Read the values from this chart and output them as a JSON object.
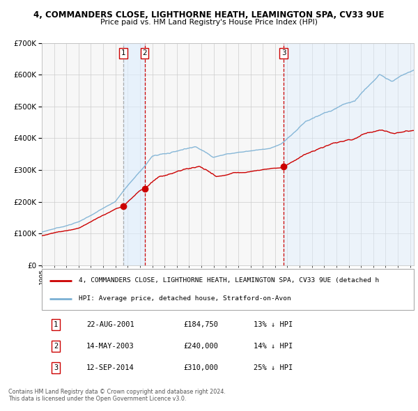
{
  "title": "4, COMMANDERS CLOSE, LIGHTHORNE HEATH, LEAMINGTON SPA, CV33 9UE",
  "subtitle": "Price paid vs. HM Land Registry's House Price Index (HPI)",
  "property_label": "4, COMMANDERS CLOSE, LIGHTHORNE HEATH, LEAMINGTON SPA, CV33 9UE (detached h",
  "hpi_label": "HPI: Average price, detached house, Stratford-on-Avon",
  "footer1": "Contains HM Land Registry data © Crown copyright and database right 2024.",
  "footer2": "This data is licensed under the Open Government Licence v3.0.",
  "transactions": [
    {
      "num": 1,
      "date": "22-AUG-2001",
      "price": 184750,
      "pct": "13%",
      "dir": "↓",
      "year": 2001.64
    },
    {
      "num": 2,
      "date": "14-MAY-2003",
      "price": 240000,
      "pct": "14%",
      "dir": "↓",
      "year": 2003.37
    },
    {
      "num": 3,
      "date": "12-SEP-2014",
      "price": 310000,
      "pct": "25%",
      "dir": "↓",
      "year": 2014.7
    }
  ],
  "property_color": "#cc0000",
  "hpi_color": "#7ab0d4",
  "vline1_color": "#aaaaaa",
  "vline23_color": "#cc0000",
  "shade_color": "#ddeeff",
  "ylim": [
    0,
    700000
  ],
  "xlim_start": 1995.0,
  "xlim_end": 2025.3,
  "grid_color": "#cccccc",
  "background_color": "#ffffff",
  "plot_bg_color": "#f7f7f7"
}
